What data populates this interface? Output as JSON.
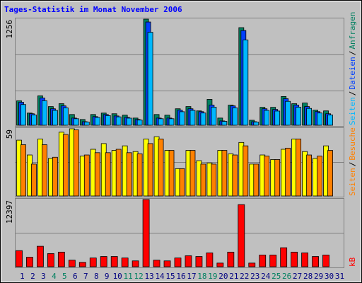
{
  "chart_data": [
    {
      "type": "bar",
      "title": "Tages-Statistik im Monat November 2006",
      "ylim": [
        0,
        1256
      ],
      "yticks": [
        1256
      ],
      "legend_separator": "/",
      "series": [
        {
          "name": "Anfragen",
          "color": "#008060",
          "values": [
            289,
            144,
            348,
            221,
            255,
            127,
            68,
            127,
            144,
            136,
            119,
            85,
            1256,
            127,
            119,
            195,
            221,
            170,
            306,
            85,
            238,
            1155,
            59,
            212,
            212,
            340,
            255,
            263,
            178,
            170,
            null
          ]
        },
        {
          "name": "Dateien",
          "color": "#0040ff",
          "values": [
            272,
            136,
            322,
            195,
            229,
            85,
            42,
            102,
            127,
            110,
            93,
            68,
            1222,
            85,
            85,
            178,
            195,
            161,
            238,
            51,
            229,
            1121,
            42,
            195,
            187,
            314,
            238,
            221,
            161,
            136,
            null
          ]
        },
        {
          "name": "Seiten",
          "color": "#00b8ff",
          "values": [
            245,
            122,
            290,
            176,
            206,
            77,
            38,
            92,
            114,
            99,
            84,
            61,
            1100,
            77,
            77,
            160,
            176,
            145,
            214,
            46,
            206,
            1009,
            38,
            176,
            168,
            283,
            214,
            199,
            145,
            122,
            null
          ]
        }
      ]
    },
    {
      "type": "bar",
      "ylim": [
        0,
        59
      ],
      "yticks": [
        59
      ],
      "legend_separator": "/",
      "series": [
        {
          "name": "Besuche",
          "color": "#ffff00",
          "values": [
            49,
            36,
            50,
            33,
            56,
            59,
            35,
            41,
            46,
            40,
            44,
            39,
            50,
            52,
            40,
            24,
            40,
            31,
            29,
            40,
            37,
            47,
            28,
            36,
            32,
            41,
            50,
            39,
            33,
            44,
            null
          ]
        },
        {
          "name": "Seiten",
          "color": "#ff8000",
          "values": [
            45,
            28,
            45,
            34,
            54,
            58,
            36,
            38,
            38,
            41,
            38,
            37,
            46,
            50,
            40,
            24,
            40,
            28,
            28,
            40,
            36,
            44,
            28,
            35,
            32,
            42,
            50,
            36,
            35,
            40,
            null
          ]
        }
      ]
    },
    {
      "type": "bar",
      "ylim": [
        0,
        12397
      ],
      "yticks": [
        12397
      ],
      "legend_separator": "/",
      "series": [
        {
          "name": "kB",
          "color": "#ff0000",
          "values": [
            2965,
            1752,
            3773,
            2425,
            2695,
            1213,
            808,
            1617,
            1887,
            1887,
            1617,
            1078,
            12397,
            1213,
            1078,
            1617,
            2021,
            1887,
            2560,
            674,
            2695,
            11454,
            674,
            2156,
            2156,
            3504,
            2695,
            2560,
            1887,
            2156,
            null
          ]
        }
      ],
      "categories": [
        "1",
        "2",
        "3",
        "4",
        "5",
        "6",
        "7",
        "8",
        "9",
        "10",
        "11",
        "12",
        "13",
        "14",
        "15",
        "16",
        "17",
        "18",
        "19",
        "20",
        "21",
        "22",
        "23",
        "24",
        "25",
        "26",
        "27",
        "28",
        "29",
        "30",
        "31"
      ],
      "category_colors": [
        "#000080",
        "#000080",
        "#000080",
        "#008060",
        "#008060",
        "#000080",
        "#000080",
        "#000080",
        "#000080",
        "#000080",
        "#008060",
        "#008060",
        "#000080",
        "#000080",
        "#000080",
        "#000080",
        "#000080",
        "#008060",
        "#008060",
        "#000080",
        "#000080",
        "#000080",
        "#000080",
        "#000080",
        "#008060",
        "#008060",
        "#000080",
        "#000080",
        "#000080",
        "#000080",
        "#000080"
      ]
    }
  ]
}
